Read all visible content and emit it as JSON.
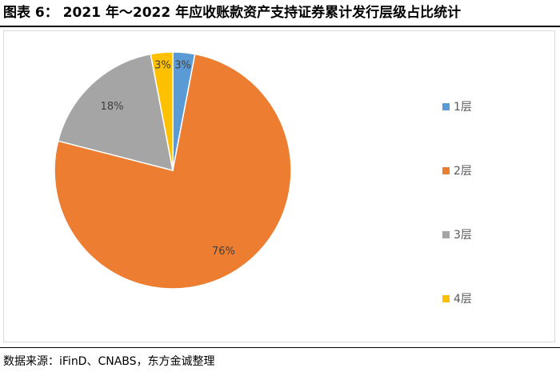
{
  "figure": {
    "title": "图表 6： 2021 年～2022 年应收账款资产支持证券累计发行层级占比统计",
    "source": "数据来源：iFinD、CNABS，东方金诚整理"
  },
  "chart_data": {
    "type": "pie",
    "categories": [
      "1层",
      "2层",
      "3层",
      "4层"
    ],
    "values": [
      3,
      76,
      18,
      3
    ],
    "data_labels": [
      "3%",
      "76%",
      "18%",
      "3%"
    ],
    "colors": [
      "#5b9bd5",
      "#ed7d31",
      "#a5a5a5",
      "#ffc000"
    ],
    "start_angle_deg": 0,
    "direction": "clockwise",
    "legend_position": "right"
  }
}
